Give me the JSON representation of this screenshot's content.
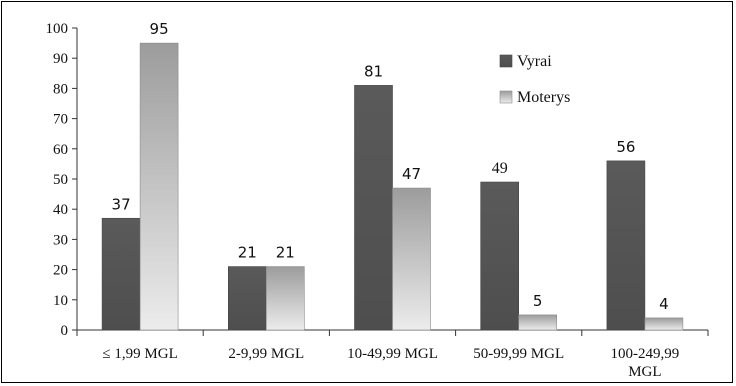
{
  "chart_data": {
    "type": "bar",
    "categories": [
      "≤ 1,99 MGL",
      "2-9,99 MGL",
      "10-49,99 MGL",
      "50-99,99 MGL",
      "100-249,99 MGL"
    ],
    "category_lines": [
      [
        "≤ 1,99 MGL"
      ],
      [
        "2-9,99 MGL"
      ],
      [
        "10-49,99 MGL"
      ],
      [
        "50-99,99 MGL"
      ],
      [
        "100-249,99",
        "MGL"
      ]
    ],
    "series": [
      {
        "name": "Vyrai",
        "values": [
          37,
          21,
          81,
          49,
          56
        ],
        "color": "#555555"
      },
      {
        "name": "Moterys",
        "values": [
          95,
          21,
          47,
          5,
          4
        ],
        "color": "#b0b0b0"
      }
    ],
    "ylim": [
      0,
      100
    ],
    "yticks": [
      "0",
      "10",
      "20",
      "30",
      "40",
      "50",
      "60",
      "70",
      "80",
      "90",
      "100"
    ],
    "title": "",
    "xlabel": "",
    "ylabel": "",
    "grid": false,
    "legend_position": "top-right"
  }
}
